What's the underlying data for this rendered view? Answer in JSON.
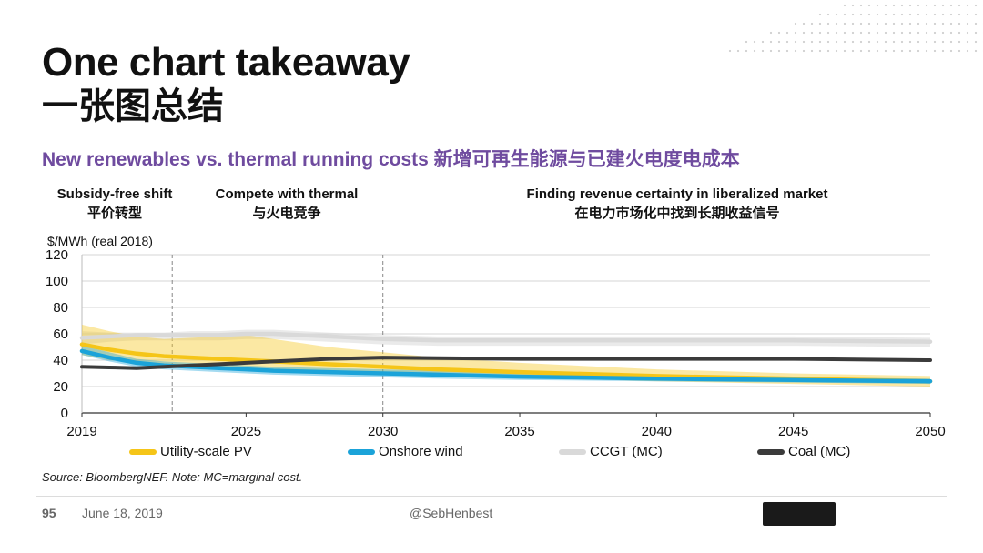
{
  "header": {
    "title": "One chart takeaway",
    "title_cn": "一张图总结",
    "subtitle": "New renewables vs. thermal running costs 新增可再生能源与已建火电度电成本"
  },
  "phases": [
    {
      "en": "Subsidy-free shift",
      "cn": "平价转型"
    },
    {
      "en": "Compete with thermal",
      "cn": "与火电竞争"
    },
    {
      "en": "Finding revenue certainty in liberalized market",
      "cn": "在电力市场化中找到长期收益信号"
    }
  ],
  "chart_data": {
    "type": "area",
    "ylabel": "$/MWh (real 2018)",
    "ylim": [
      0,
      120
    ],
    "yticks": [
      0,
      20,
      40,
      60,
      80,
      100,
      120
    ],
    "xlim": [
      2019,
      2050
    ],
    "xticks": [
      2019,
      2025,
      2030,
      2035,
      2040,
      2045,
      2050
    ],
    "phase_dividers": [
      2022.3,
      2030
    ],
    "grid": true,
    "legend_position": "bottom",
    "series": [
      {
        "name": "Utility-scale PV",
        "color": "#f5c518",
        "x": [
          2019,
          2020,
          2021,
          2022,
          2023,
          2024,
          2025,
          2026,
          2028,
          2030,
          2032,
          2035,
          2040,
          2045,
          2050
        ],
        "central": [
          52,
          48,
          45,
          43,
          42,
          41,
          40,
          39,
          37,
          35,
          33,
          31,
          28,
          26,
          24
        ],
        "low": [
          44,
          40,
          38,
          36,
          35,
          34,
          33,
          32,
          31,
          30,
          29,
          27,
          24,
          22,
          20
        ],
        "high": [
          67,
          62,
          58,
          56,
          57,
          58,
          59,
          56,
          50,
          46,
          42,
          38,
          33,
          30,
          28
        ]
      },
      {
        "name": "Onshore wind",
        "color": "#1ba3d9",
        "x": [
          2019,
          2020,
          2021,
          2022,
          2023,
          2024,
          2025,
          2026,
          2028,
          2030,
          2032,
          2035,
          2040,
          2045,
          2050
        ],
        "central": [
          47,
          42,
          38,
          36,
          35,
          34,
          33,
          32,
          31,
          30,
          29,
          27.5,
          26,
          25,
          24
        ],
        "low": [
          44,
          39,
          35,
          33,
          32,
          31,
          30,
          29,
          28,
          27,
          26,
          25,
          24,
          23,
          22
        ],
        "high": [
          51,
          46,
          41,
          39,
          38,
          37,
          36,
          35,
          34,
          33,
          32,
          30,
          28,
          27,
          26
        ]
      },
      {
        "name": "CCGT (MC)",
        "color": "#d9d9d9",
        "x": [
          2019,
          2020,
          2021,
          2022,
          2023,
          2024,
          2025,
          2026,
          2028,
          2030,
          2032,
          2035,
          2040,
          2045,
          2050
        ],
        "central": [
          57,
          58,
          59,
          59,
          59,
          59,
          60,
          60,
          58,
          56,
          55,
          55,
          55,
          55,
          54
        ],
        "low": [
          52,
          54,
          55,
          55,
          55,
          55,
          56,
          56,
          54,
          52,
          51,
          51,
          51,
          51,
          50
        ],
        "high": [
          62,
          61,
          61,
          61,
          62,
          62,
          63,
          63,
          61,
          59,
          58,
          58,
          58,
          58,
          57
        ]
      },
      {
        "name": "Coal (MC)",
        "color": "#3b3b3b",
        "x": [
          2019,
          2020,
          2021,
          2022,
          2023,
          2024,
          2025,
          2026,
          2028,
          2030,
          2032,
          2035,
          2040,
          2045,
          2050
        ],
        "central": [
          35,
          34.5,
          34,
          35,
          36,
          37,
          38,
          39,
          41,
          42,
          41.5,
          41,
          41,
          41,
          40
        ]
      }
    ]
  },
  "source_note": "Source: BloombergNEF. Note: MC=marginal cost.",
  "footer": {
    "page_number": "95",
    "date": "June 18, 2019",
    "handle": "@SebHenbest"
  }
}
